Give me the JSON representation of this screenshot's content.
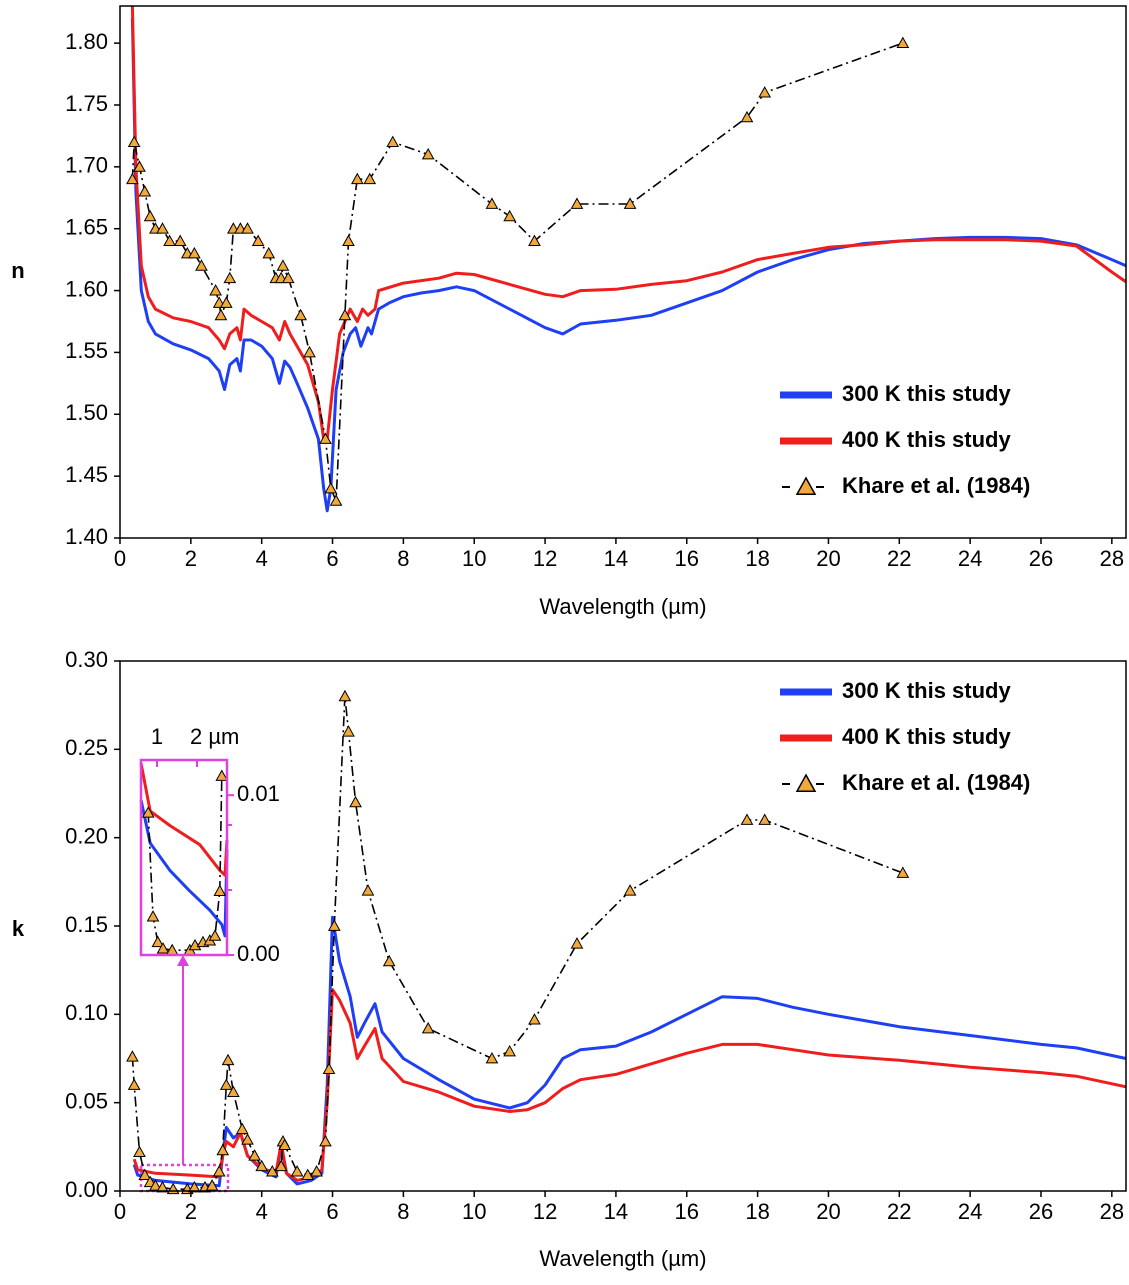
{
  "chart_data": [
    {
      "type": "line",
      "y_label": "n",
      "x_label": "Wavelength (µm)",
      "legend": "lower right",
      "xlim": [
        0,
        28.4
      ],
      "xticks": [
        0,
        2,
        4,
        6,
        8,
        10,
        12,
        14,
        16,
        18,
        20,
        22,
        24,
        26,
        28
      ],
      "ylim": [
        1.4,
        1.83
      ],
      "yticks": [
        {
          "value": 1.4,
          "label": "1.40"
        },
        {
          "value": 1.45,
          "label": "1.45"
        },
        {
          "value": 1.5,
          "label": "1.50"
        },
        {
          "value": 1.55,
          "label": "1.55"
        },
        {
          "value": 1.6,
          "label": "1.60"
        },
        {
          "value": 1.65,
          "label": "1.65"
        },
        {
          "value": 1.7,
          "label": "1.70"
        },
        {
          "value": 1.75,
          "label": "1.75"
        },
        {
          "value": 1.8,
          "label": "1.80"
        }
      ],
      "series": [
        {
          "name": "300 K this study",
          "color": "#1f3ff5",
          "style": "solid",
          "x": [
            0.35,
            0.45,
            0.6,
            0.8,
            1.0,
            1.5,
            2.0,
            2.5,
            2.8,
            2.95,
            3.1,
            3.3,
            3.4,
            3.5,
            3.7,
            4.0,
            4.3,
            4.5,
            4.65,
            4.8,
            5.0,
            5.3,
            5.6,
            5.75,
            5.85,
            5.95,
            6.1,
            6.3,
            6.5,
            6.65,
            6.8,
            7.0,
            7.1,
            7.3,
            7.6,
            8.0,
            8.5,
            9.0,
            9.5,
            10.0,
            11,
            12,
            12.5,
            13,
            14,
            15,
            16,
            17,
            18,
            19,
            20,
            21,
            22,
            23,
            24,
            25,
            26,
            27,
            28,
            28.4
          ],
          "values": [
            1.82,
            1.68,
            1.6,
            1.575,
            1.565,
            1.557,
            1.552,
            1.545,
            1.535,
            1.52,
            1.54,
            1.545,
            1.535,
            1.56,
            1.56,
            1.555,
            1.545,
            1.525,
            1.543,
            1.538,
            1.525,
            1.505,
            1.48,
            1.44,
            1.422,
            1.44,
            1.52,
            1.55,
            1.565,
            1.57,
            1.555,
            1.57,
            1.565,
            1.585,
            1.59,
            1.595,
            1.598,
            1.6,
            1.603,
            1.6,
            1.585,
            1.57,
            1.565,
            1.573,
            1.576,
            1.58,
            1.59,
            1.6,
            1.615,
            1.625,
            1.633,
            1.638,
            1.64,
            1.642,
            1.643,
            1.643,
            1.642,
            1.637,
            1.625,
            1.62
          ]
        },
        {
          "name": "400 K this study",
          "color": "#f01d1d",
          "style": "solid",
          "x": [
            0.35,
            0.45,
            0.6,
            0.8,
            1.0,
            1.5,
            2.0,
            2.5,
            2.8,
            2.95,
            3.1,
            3.3,
            3.4,
            3.5,
            3.7,
            4.0,
            4.3,
            4.5,
            4.65,
            4.8,
            5.0,
            5.3,
            5.6,
            5.75,
            5.85,
            6.0,
            6.2,
            6.5,
            6.7,
            6.85,
            7.0,
            7.2,
            7.3,
            8,
            9,
            9.5,
            10,
            11,
            12,
            12.5,
            13,
            14,
            15,
            16,
            17,
            18,
            19,
            20,
            21,
            22,
            23,
            24,
            25,
            26,
            27,
            28,
            28.4
          ],
          "values": [
            1.83,
            1.7,
            1.62,
            1.595,
            1.585,
            1.578,
            1.575,
            1.57,
            1.56,
            1.553,
            1.565,
            1.57,
            1.56,
            1.585,
            1.58,
            1.575,
            1.57,
            1.56,
            1.575,
            1.565,
            1.555,
            1.54,
            1.51,
            1.48,
            1.48,
            1.52,
            1.565,
            1.585,
            1.575,
            1.585,
            1.58,
            1.585,
            1.6,
            1.606,
            1.61,
            1.614,
            1.613,
            1.605,
            1.597,
            1.595,
            1.6,
            1.601,
            1.605,
            1.608,
            1.615,
            1.625,
            1.63,
            1.635,
            1.637,
            1.64,
            1.641,
            1.641,
            1.641,
            1.64,
            1.636,
            1.615,
            1.607
          ]
        },
        {
          "name": "Khare et al. (1984)",
          "color": "#000000",
          "marker_color": "#f2a93b",
          "style": "dash-dot",
          "marker": "triangle",
          "x": [
            0.35,
            0.4,
            0.55,
            0.7,
            0.85,
            1.0,
            1.2,
            1.4,
            1.7,
            1.9,
            2.1,
            2.3,
            2.7,
            2.8,
            2.85,
            3.0,
            3.1,
            3.2,
            3.4,
            3.6,
            3.9,
            4.2,
            4.4,
            4.55,
            4.6,
            4.75,
            5.1,
            5.35,
            5.8,
            5.95,
            6.1,
            6.35,
            6.45,
            6.7,
            7.05,
            7.7,
            8.7,
            10.5,
            11.0,
            11.7,
            12.9,
            14.4,
            17.7,
            18.2,
            22.1
          ],
          "values": [
            1.69,
            1.72,
            1.7,
            1.68,
            1.66,
            1.65,
            1.65,
            1.64,
            1.64,
            1.63,
            1.63,
            1.62,
            1.6,
            1.59,
            1.58,
            1.59,
            1.61,
            1.65,
            1.65,
            1.65,
            1.64,
            1.63,
            1.61,
            1.61,
            1.62,
            1.61,
            1.58,
            1.55,
            1.48,
            1.44,
            1.43,
            1.58,
            1.64,
            1.69,
            1.69,
            1.72,
            1.71,
            1.67,
            1.66,
            1.64,
            1.67,
            1.67,
            1.74,
            1.76,
            1.8
          ]
        }
      ]
    },
    {
      "type": "line",
      "y_label": "k",
      "x_label": "Wavelength (µm)",
      "legend": "upper right",
      "xlim": [
        0,
        28.4
      ],
      "xticks": [
        0,
        2,
        4,
        6,
        8,
        10,
        12,
        14,
        16,
        18,
        20,
        22,
        24,
        26,
        28
      ],
      "ylim": [
        0,
        0.3
      ],
      "yticks": [
        {
          "value": 0,
          "label": "0.00"
        },
        {
          "value": 0.05,
          "label": "0.05"
        },
        {
          "value": 0.1,
          "label": "0.10"
        },
        {
          "value": 0.15,
          "label": "0.15"
        },
        {
          "value": 0.2,
          "label": "0.20"
        },
        {
          "value": 0.25,
          "label": "0.25"
        },
        {
          "value": 0.3,
          "label": "0.30"
        }
      ],
      "series": [
        {
          "name": "300 K this study",
          "color": "#1f3ff5",
          "style": "solid",
          "x": [
            0.4,
            0.5,
            1,
            2,
            2.8,
            2.9,
            3.0,
            3.2,
            3.4,
            3.6,
            4.0,
            4.4,
            4.55,
            4.7,
            5.0,
            5.4,
            5.7,
            5.85,
            6.0,
            6.2,
            6.5,
            6.7,
            6.9,
            7.2,
            7.4,
            8,
            9,
            10,
            11,
            11.5,
            12,
            12.5,
            13,
            14,
            15,
            16,
            17,
            18,
            19,
            20,
            22,
            24,
            26,
            27,
            28.4
          ],
          "values": [
            0.015,
            0.009,
            0.006,
            0.004,
            0.003,
            0.02,
            0.036,
            0.03,
            0.033,
            0.02,
            0.012,
            0.008,
            0.025,
            0.01,
            0.004,
            0.006,
            0.01,
            0.06,
            0.155,
            0.13,
            0.11,
            0.087,
            0.095,
            0.106,
            0.09,
            0.075,
            0.063,
            0.052,
            0.047,
            0.05,
            0.06,
            0.075,
            0.08,
            0.082,
            0.09,
            0.1,
            0.11,
            0.109,
            0.104,
            0.1,
            0.093,
            0.088,
            0.083,
            0.081,
            0.075
          ]
        },
        {
          "name": "400 K this study",
          "color": "#f01d1d",
          "style": "solid",
          "x": [
            0.4,
            0.5,
            1,
            2,
            2.8,
            2.9,
            3.0,
            3.2,
            3.4,
            3.6,
            4.0,
            4.4,
            4.55,
            4.7,
            5.0,
            5.4,
            5.7,
            5.85,
            6.0,
            6.2,
            6.5,
            6.7,
            6.9,
            7.2,
            7.4,
            8,
            9,
            10,
            11,
            11.5,
            12,
            12.5,
            13,
            14,
            15,
            16,
            17,
            18,
            19,
            20,
            22,
            24,
            26,
            27,
            28.4
          ],
          "values": [
            0.018,
            0.012,
            0.01,
            0.009,
            0.008,
            0.02,
            0.028,
            0.025,
            0.033,
            0.02,
            0.013,
            0.01,
            0.027,
            0.01,
            0.006,
            0.008,
            0.012,
            0.05,
            0.114,
            0.108,
            0.095,
            0.075,
            0.082,
            0.092,
            0.075,
            0.062,
            0.056,
            0.048,
            0.045,
            0.046,
            0.05,
            0.058,
            0.063,
            0.066,
            0.072,
            0.078,
            0.083,
            0.083,
            0.08,
            0.077,
            0.074,
            0.07,
            0.067,
            0.065,
            0.059
          ]
        },
        {
          "name": "Khare et al. (1984)",
          "color": "#000000",
          "marker_color": "#f2a93b",
          "style": "dash-dot",
          "marker": "triangle",
          "x": [
            0.35,
            0.4,
            0.55,
            0.7,
            0.85,
            1.0,
            1.2,
            1.5,
            1.9,
            2.1,
            2.4,
            2.6,
            2.8,
            2.9,
            3.0,
            3.05,
            3.2,
            3.45,
            3.6,
            3.8,
            4.0,
            4.3,
            4.55,
            4.6,
            4.65,
            5.0,
            5.3,
            5.55,
            5.8,
            5.9,
            6.05,
            6.35,
            6.45,
            6.65,
            7.0,
            7.6,
            8.7,
            10.5,
            11.0,
            11.7,
            12.9,
            14.4,
            17.7,
            18.2,
            22.1
          ],
          "values": [
            0.076,
            0.06,
            0.022,
            0.009,
            0.005,
            0.003,
            0.002,
            0.001,
            0.001,
            0.002,
            0.002,
            0.003,
            0.011,
            0.023,
            0.06,
            0.074,
            0.056,
            0.035,
            0.029,
            0.02,
            0.014,
            0.011,
            0.014,
            0.028,
            0.026,
            0.011,
            0.009,
            0.011,
            0.028,
            0.069,
            0.15,
            0.28,
            0.26,
            0.22,
            0.17,
            0.13,
            0.092,
            0.075,
            0.079,
            0.097,
            0.14,
            0.17,
            0.21,
            0.21,
            0.18
          ]
        }
      ]
    },
    {
      "type": "line",
      "inset": true,
      "xlim": [
        0.6,
        2.75
      ],
      "xticks": [
        1,
        {
          "value": 2,
          "label": "2 µm"
        }
      ],
      "ylim": [
        0,
        0.0122
      ],
      "yticks": [
        {
          "value": 0,
          "label": "0.00"
        },
        {
          "value": 0.01,
          "label": "0.01"
        }
      ],
      "series": [
        {
          "color": "#1f3ff5",
          "style": "solid",
          "x": [
            0.6,
            0.83,
            1.32,
            1.82,
            2.32,
            2.62,
            2.7,
            2.75
          ],
          "values": [
            0.0097,
            0.007,
            0.0053,
            0.004,
            0.0028,
            0.0019,
            0.0012,
            0.0066
          ]
        },
        {
          "color": "#f01d1d",
          "style": "solid",
          "x": [
            0.6,
            0.83,
            1.32,
            2.07,
            2.57,
            2.7,
            2.75
          ],
          "values": [
            0.012,
            0.009,
            0.0081,
            0.0069,
            0.0053,
            0.005,
            0.0072
          ]
        },
        {
          "color": "#000000",
          "marker_color": "#f2a93b",
          "style": "dash-dot",
          "marker": "triangle",
          "x": [
            0.78,
            0.9,
            1.02,
            1.15,
            1.38,
            1.82,
            1.95,
            2.15,
            2.32,
            2.45,
            2.57,
            2.62
          ],
          "values": [
            0.0089,
            0.0024,
            0.0008,
            0.0004,
            0.0003,
            0.0003,
            0.0006,
            0.0008,
            0.0009,
            0.0012,
            0.004,
            0.0112
          ]
        }
      ]
    }
  ]
}
